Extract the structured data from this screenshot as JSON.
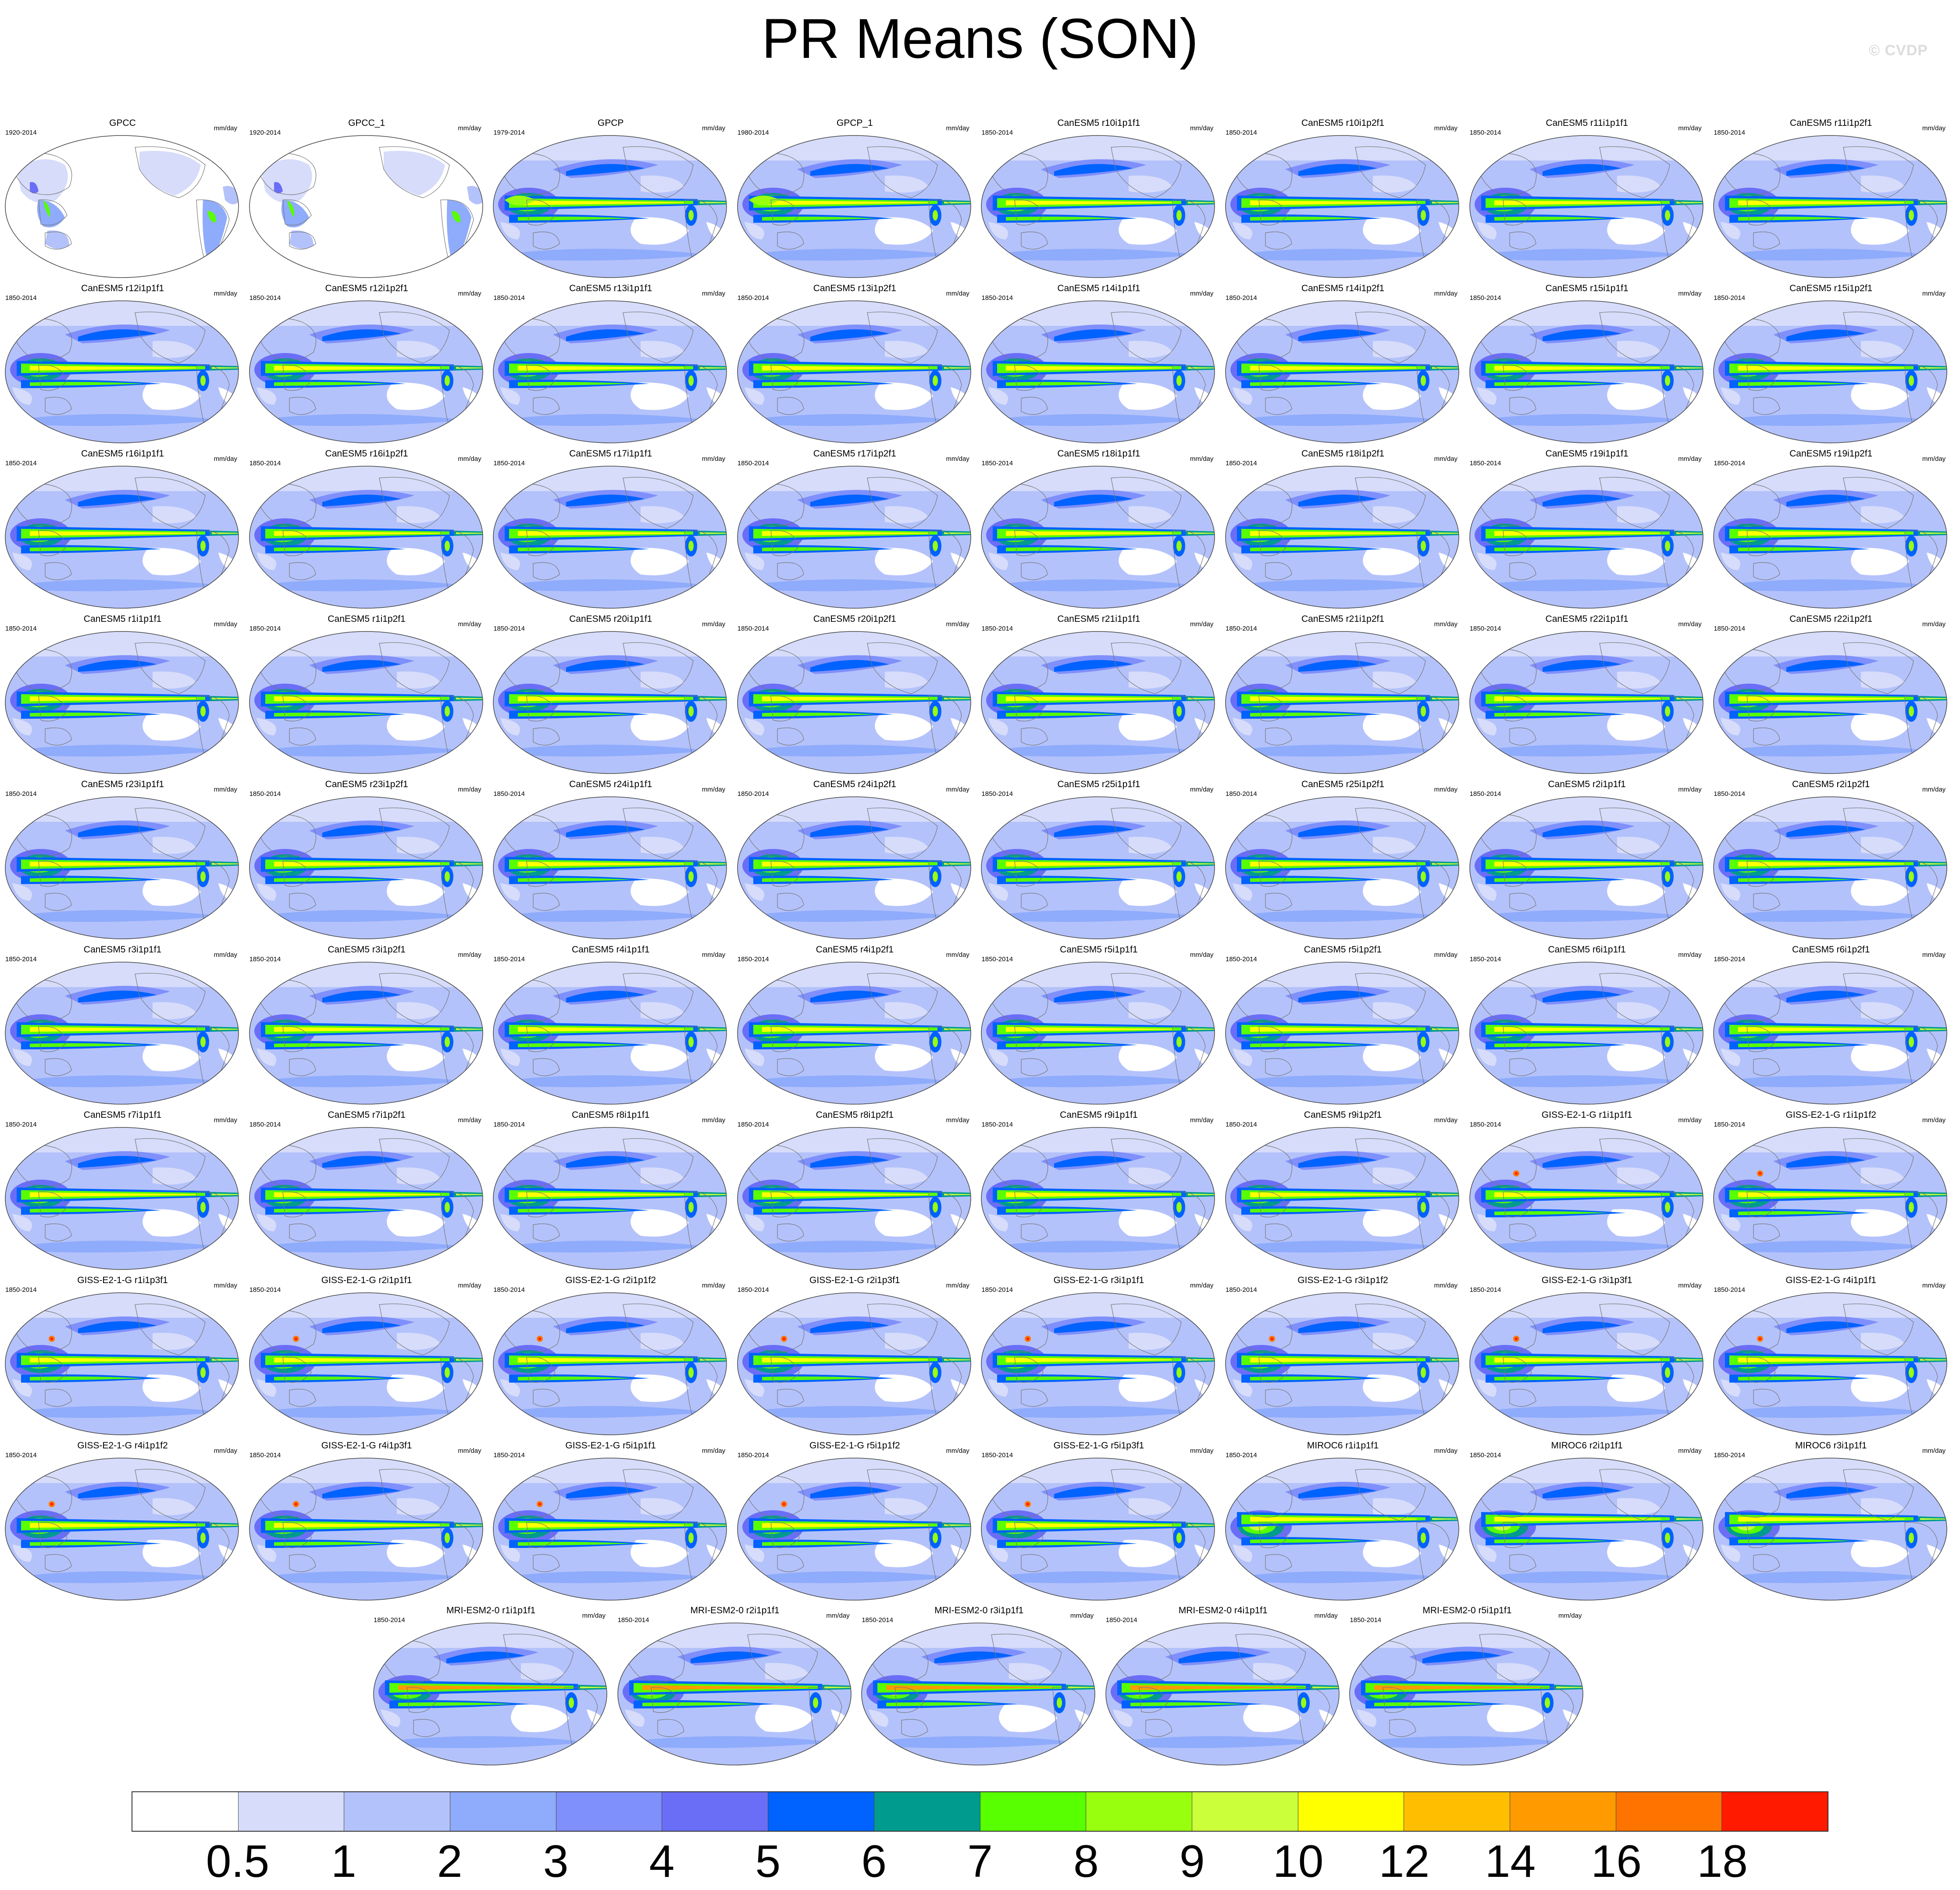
{
  "title": "PR Means (SON)",
  "watermark": "© CVDP",
  "units": "mm/day",
  "colorbar": {
    "labels": [
      "0.5",
      "1",
      "2",
      "3",
      "4",
      "5",
      "6",
      "7",
      "8",
      "9",
      "10",
      "12",
      "14",
      "16",
      "18"
    ],
    "colors": [
      "#ffffff",
      "#d6dcfa",
      "#b4c2fb",
      "#8fabfb",
      "#7f8ffb",
      "#6a6ef7",
      "#0062ff",
      "#009b8f",
      "#57ff00",
      "#98ff0f",
      "#caff3a",
      "#ffff00",
      "#ffbf00",
      "#ff9b00",
      "#ff7400",
      "#ff1a00"
    ]
  },
  "panels": [
    {
      "name": "GPCC",
      "period": "1920-2014",
      "kind": "gpcc"
    },
    {
      "name": "GPCC_1",
      "period": "1920-2014",
      "kind": "gpcc"
    },
    {
      "name": "GPCP",
      "period": "1979-2014",
      "kind": "obs"
    },
    {
      "name": "GPCP_1",
      "period": "1980-2014",
      "kind": "obs"
    },
    {
      "name": "CanESM5 r10i1p1f1",
      "period": "1850-2014",
      "kind": "can"
    },
    {
      "name": "CanESM5 r10i1p2f1",
      "period": "1850-2014",
      "kind": "can"
    },
    {
      "name": "CanESM5 r11i1p1f1",
      "period": "1850-2014",
      "kind": "can"
    },
    {
      "name": "CanESM5 r11i1p2f1",
      "period": "1850-2014",
      "kind": "can"
    },
    {
      "name": "CanESM5 r12i1p1f1",
      "period": "1850-2014",
      "kind": "can"
    },
    {
      "name": "CanESM5 r12i1p2f1",
      "period": "1850-2014",
      "kind": "can"
    },
    {
      "name": "CanESM5 r13i1p1f1",
      "period": "1850-2014",
      "kind": "can"
    },
    {
      "name": "CanESM5 r13i1p2f1",
      "period": "1850-2014",
      "kind": "can"
    },
    {
      "name": "CanESM5 r14i1p1f1",
      "period": "1850-2014",
      "kind": "can"
    },
    {
      "name": "CanESM5 r14i1p2f1",
      "period": "1850-2014",
      "kind": "can"
    },
    {
      "name": "CanESM5 r15i1p1f1",
      "period": "1850-2014",
      "kind": "can"
    },
    {
      "name": "CanESM5 r15i1p2f1",
      "period": "1850-2014",
      "kind": "can"
    },
    {
      "name": "CanESM5 r16i1p1f1",
      "period": "1850-2014",
      "kind": "can"
    },
    {
      "name": "CanESM5 r16i1p2f1",
      "period": "1850-2014",
      "kind": "can"
    },
    {
      "name": "CanESM5 r17i1p1f1",
      "period": "1850-2014",
      "kind": "can"
    },
    {
      "name": "CanESM5 r17i1p2f1",
      "period": "1850-2014",
      "kind": "can"
    },
    {
      "name": "CanESM5 r18i1p1f1",
      "period": "1850-2014",
      "kind": "can"
    },
    {
      "name": "CanESM5 r18i1p2f1",
      "period": "1850-2014",
      "kind": "can"
    },
    {
      "name": "CanESM5 r19i1p1f1",
      "period": "1850-2014",
      "kind": "can"
    },
    {
      "name": "CanESM5 r19i1p2f1",
      "period": "1850-2014",
      "kind": "can"
    },
    {
      "name": "CanESM5 r1i1p1f1",
      "period": "1850-2014",
      "kind": "can"
    },
    {
      "name": "CanESM5 r1i1p2f1",
      "period": "1850-2014",
      "kind": "can"
    },
    {
      "name": "CanESM5 r20i1p1f1",
      "period": "1850-2014",
      "kind": "can"
    },
    {
      "name": "CanESM5 r20i1p2f1",
      "period": "1850-2014",
      "kind": "can"
    },
    {
      "name": "CanESM5 r21i1p1f1",
      "period": "1850-2014",
      "kind": "can"
    },
    {
      "name": "CanESM5 r21i1p2f1",
      "period": "1850-2014",
      "kind": "can"
    },
    {
      "name": "CanESM5 r22i1p1f1",
      "period": "1850-2014",
      "kind": "can"
    },
    {
      "name": "CanESM5 r22i1p2f1",
      "period": "1850-2014",
      "kind": "can"
    },
    {
      "name": "CanESM5 r23i1p1f1",
      "period": "1850-2014",
      "kind": "can"
    },
    {
      "name": "CanESM5 r23i1p2f1",
      "period": "1850-2014",
      "kind": "can"
    },
    {
      "name": "CanESM5 r24i1p1f1",
      "period": "1850-2014",
      "kind": "can"
    },
    {
      "name": "CanESM5 r24i1p2f1",
      "period": "1850-2014",
      "kind": "can"
    },
    {
      "name": "CanESM5 r25i1p1f1",
      "period": "1850-2014",
      "kind": "can"
    },
    {
      "name": "CanESM5 r25i1p2f1",
      "period": "1850-2014",
      "kind": "can"
    },
    {
      "name": "CanESM5 r2i1p1f1",
      "period": "1850-2014",
      "kind": "can"
    },
    {
      "name": "CanESM5 r2i1p2f1",
      "period": "1850-2014",
      "kind": "can"
    },
    {
      "name": "CanESM5 r3i1p1f1",
      "period": "1850-2014",
      "kind": "can"
    },
    {
      "name": "CanESM5 r3i1p2f1",
      "period": "1850-2014",
      "kind": "can"
    },
    {
      "name": "CanESM5 r4i1p1f1",
      "period": "1850-2014",
      "kind": "can"
    },
    {
      "name": "CanESM5 r4i1p2f1",
      "period": "1850-2014",
      "kind": "can"
    },
    {
      "name": "CanESM5 r5i1p1f1",
      "period": "1850-2014",
      "kind": "can"
    },
    {
      "name": "CanESM5 r5i1p2f1",
      "period": "1850-2014",
      "kind": "can"
    },
    {
      "name": "CanESM5 r6i1p1f1",
      "period": "1850-2014",
      "kind": "can"
    },
    {
      "name": "CanESM5 r6i1p2f1",
      "period": "1850-2014",
      "kind": "can"
    },
    {
      "name": "CanESM5 r7i1p1f1",
      "period": "1850-2014",
      "kind": "can"
    },
    {
      "name": "CanESM5 r7i1p2f1",
      "period": "1850-2014",
      "kind": "can"
    },
    {
      "name": "CanESM5 r8i1p1f1",
      "period": "1850-2014",
      "kind": "can"
    },
    {
      "name": "CanESM5 r8i1p2f1",
      "period": "1850-2014",
      "kind": "can"
    },
    {
      "name": "CanESM5 r9i1p1f1",
      "period": "1850-2014",
      "kind": "can"
    },
    {
      "name": "CanESM5 r9i1p2f1",
      "period": "1850-2014",
      "kind": "can"
    },
    {
      "name": "GISS-E2-1-G r1i1p1f1",
      "period": "1850-2014",
      "kind": "giss"
    },
    {
      "name": "GISS-E2-1-G r1i1p1f2",
      "period": "1850-2014",
      "kind": "giss"
    },
    {
      "name": "GISS-E2-1-G r1i1p3f1",
      "period": "1850-2014",
      "kind": "giss"
    },
    {
      "name": "GISS-E2-1-G r2i1p1f1",
      "period": "1850-2014",
      "kind": "giss"
    },
    {
      "name": "GISS-E2-1-G r2i1p1f2",
      "period": "1850-2014",
      "kind": "giss"
    },
    {
      "name": "GISS-E2-1-G r2i1p3f1",
      "period": "1850-2014",
      "kind": "giss"
    },
    {
      "name": "GISS-E2-1-G r3i1p1f1",
      "period": "1850-2014",
      "kind": "giss"
    },
    {
      "name": "GISS-E2-1-G r3i1p1f2",
      "period": "1850-2014",
      "kind": "giss"
    },
    {
      "name": "GISS-E2-1-G r3i1p3f1",
      "period": "1850-2014",
      "kind": "giss"
    },
    {
      "name": "GISS-E2-1-G r4i1p1f1",
      "period": "1850-2014",
      "kind": "giss"
    },
    {
      "name": "GISS-E2-1-G r4i1p1f2",
      "period": "1850-2014",
      "kind": "giss"
    },
    {
      "name": "GISS-E2-1-G r4i1p3f1",
      "period": "1850-2014",
      "kind": "giss"
    },
    {
      "name": "GISS-E2-1-G r5i1p1f1",
      "period": "1850-2014",
      "kind": "giss"
    },
    {
      "name": "GISS-E2-1-G r5i1p1f2",
      "period": "1850-2014",
      "kind": "giss"
    },
    {
      "name": "GISS-E2-1-G r5i1p3f1",
      "period": "1850-2014",
      "kind": "giss"
    },
    {
      "name": "MIROC6 r1i1p1f1",
      "period": "1850-2014",
      "kind": "miroc"
    },
    {
      "name": "MIROC6 r2i1p1f1",
      "period": "1850-2014",
      "kind": "miroc"
    },
    {
      "name": "MIROC6 r3i1p1f1",
      "period": "1850-2014",
      "kind": "miroc"
    },
    {
      "name": "MRI-ESM2-0 r1i1p1f1",
      "period": "1850-2014",
      "kind": "mri"
    },
    {
      "name": "MRI-ESM2-0 r2i1p1f1",
      "period": "1850-2014",
      "kind": "mri"
    },
    {
      "name": "MRI-ESM2-0 r3i1p1f1",
      "period": "1850-2014",
      "kind": "mri"
    },
    {
      "name": "MRI-ESM2-0 r4i1p1f1",
      "period": "1850-2014",
      "kind": "mri"
    },
    {
      "name": "MRI-ESM2-0 r5i1p1f1",
      "period": "1850-2014",
      "kind": "mri"
    }
  ]
}
